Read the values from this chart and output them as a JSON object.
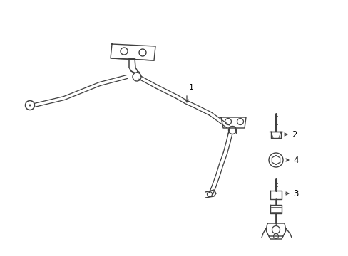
{
  "bg_color": "#ffffff",
  "line_color": "#404040",
  "label_color": "#000000",
  "figsize": [
    4.89,
    3.6
  ],
  "dpi": 100,
  "xlim": [
    0,
    489
  ],
  "ylim": [
    0,
    360
  ]
}
